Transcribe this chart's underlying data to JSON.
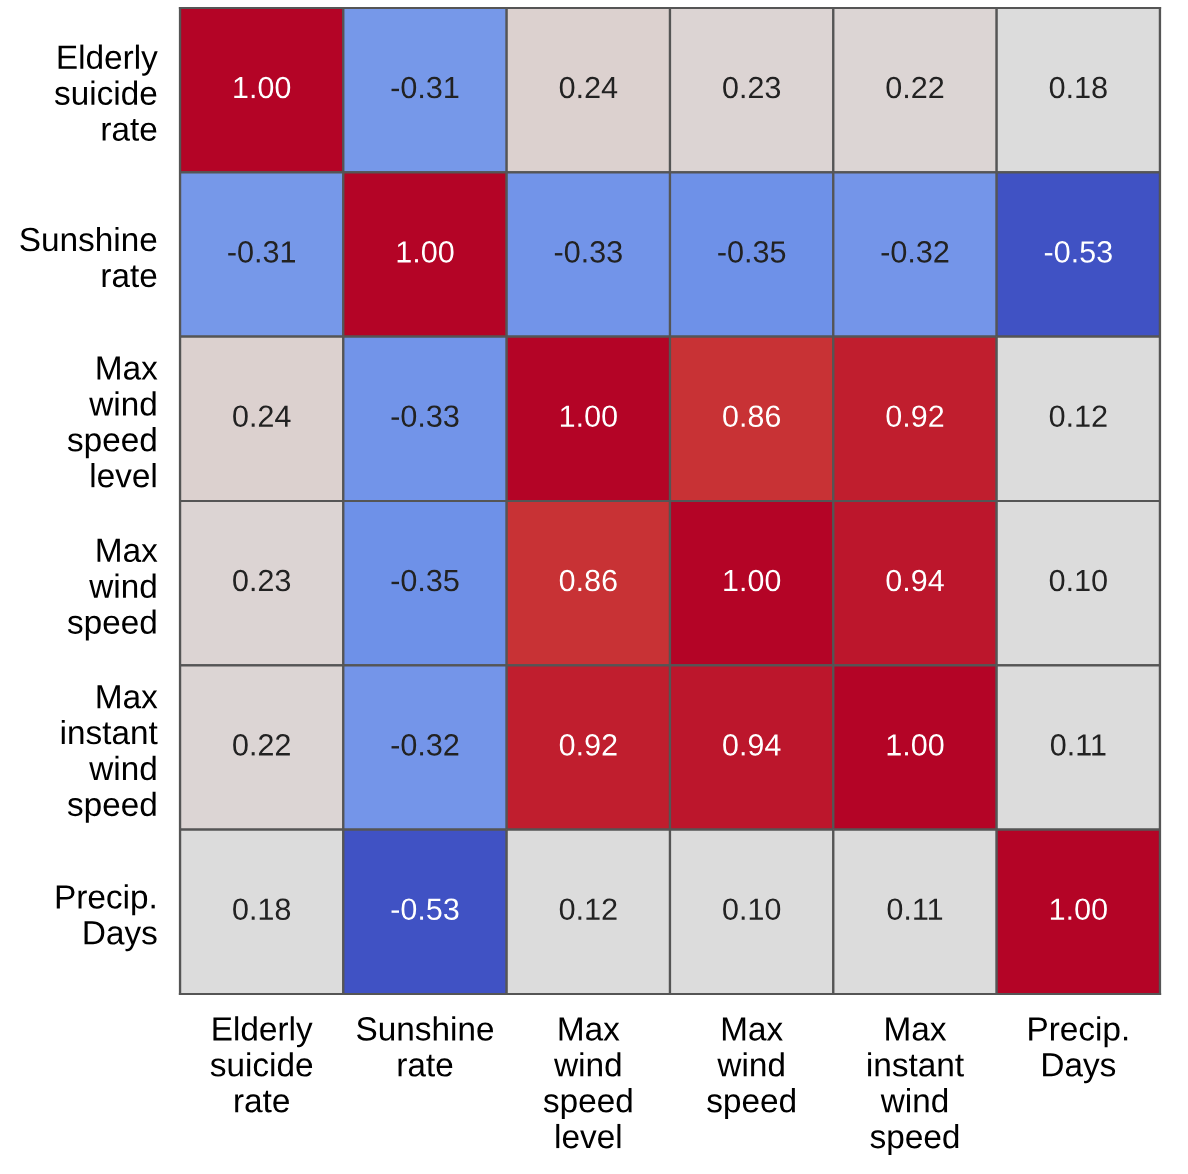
{
  "chart_data": {
    "type": "heatmap",
    "categories": [
      "Elderly suicide rate",
      "Sunshine rate",
      "Max wind speed level",
      "Max wind speed",
      "Max instant wind speed",
      "Precip. Days"
    ],
    "y_categories": [
      "Elderly suicide rate",
      "Sunshine rate",
      "Max wind speed level",
      "Max wind speed",
      "Max instant wind speed",
      "Precip. Days"
    ],
    "cells": [
      [
        1.0,
        -0.31,
        0.24,
        0.23,
        0.22,
        0.18
      ],
      [
        -0.31,
        1.0,
        -0.33,
        -0.35,
        -0.32,
        -0.53
      ],
      [
        0.24,
        -0.33,
        1.0,
        0.86,
        0.92,
        0.12
      ],
      [
        0.23,
        -0.35,
        0.86,
        1.0,
        0.94,
        0.1
      ],
      [
        0.22,
        -0.32,
        0.92,
        0.94,
        1.0,
        0.11
      ],
      [
        0.18,
        -0.53,
        0.12,
        0.1,
        0.11,
        1.0
      ]
    ],
    "cell_labels": [
      [
        "1.00",
        "-0.31",
        "0.24",
        "0.23",
        "0.22",
        "0.18"
      ],
      [
        "-0.31",
        "1.00",
        "-0.33",
        "-0.35",
        "-0.32",
        "-0.53"
      ],
      [
        "0.24",
        "-0.33",
        "1.00",
        "0.86",
        "0.92",
        "0.12"
      ],
      [
        "0.23",
        "-0.35",
        "0.86",
        "1.00",
        "0.94",
        "0.10"
      ],
      [
        "0.22",
        "-0.32",
        "0.92",
        "0.94",
        "1.00",
        "0.11"
      ],
      [
        "0.18",
        "-0.53",
        "0.12",
        "0.10",
        "0.11",
        "1.00"
      ]
    ]
  }
}
